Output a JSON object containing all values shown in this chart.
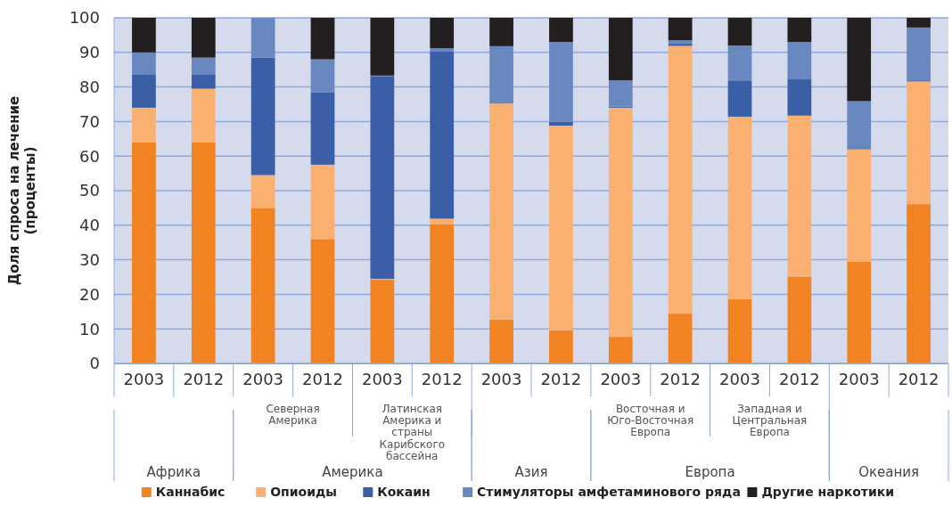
{
  "chart_data": {
    "type": "bar",
    "stacked": true,
    "ylabel": "Доля спроса на лечение (проценты)",
    "categories": [
      "2003",
      "2012",
      "2003",
      "2012",
      "2003",
      "2012",
      "2003",
      "2012",
      "2003",
      "2012",
      "2003",
      "2012",
      "2003",
      "2012"
    ],
    "series": [
      {
        "name": "Каннабис",
        "color": "#f28323",
        "values": [
          64,
          64,
          45,
          36,
          24.2,
          40.2,
          12.7,
          9.6,
          7.7,
          14.4,
          18.6,
          25.1,
          29.5,
          46.1
        ]
      },
      {
        "name": "Опиоиды",
        "color": "#f9b071",
        "values": [
          10,
          15.5,
          9.5,
          21.5,
          0.3,
          1.7,
          62.5,
          59.2,
          66.3,
          77.5,
          52.8,
          46.6,
          32.5,
          35.5
        ]
      },
      {
        "name": "Кокаин",
        "color": "#3a5fa6",
        "values": [
          9.5,
          4,
          34,
          21,
          58.5,
          48.3,
          0,
          1.1,
          0.3,
          0.6,
          10.3,
          10.5,
          0.3,
          0.3
        ]
      },
      {
        "name": "Стимуляторы амфетаминового ряда",
        "color": "#6a88c0",
        "values": [
          6.5,
          5,
          11.5,
          9.5,
          0.3,
          1,
          16.6,
          23.1,
          7.6,
          1,
          10.3,
          10.8,
          13.6,
          15.3
        ]
      },
      {
        "name": "Другие наркотики",
        "color": "#231f20",
        "values": [
          10,
          11.5,
          0,
          12,
          16.7,
          8.8,
          8.2,
          7,
          18.1,
          6.5,
          8,
          7,
          24.1,
          2.8
        ]
      }
    ],
    "annotations": [
      "Северная Америка",
      "Латинская Америка и страны Карибского бассейна",
      "Восточная и Юго-Восточная Европа",
      "Западная и Центральная Европа",
      "Африка",
      "Америка",
      "Азия",
      "Европа",
      "Океания"
    ],
    "ylim": [
      0,
      100
    ],
    "yticks": [
      0,
      10,
      20,
      30,
      40,
      50,
      60,
      70,
      80,
      90,
      100
    ],
    "grid": "y",
    "legend": "bottom"
  }
}
